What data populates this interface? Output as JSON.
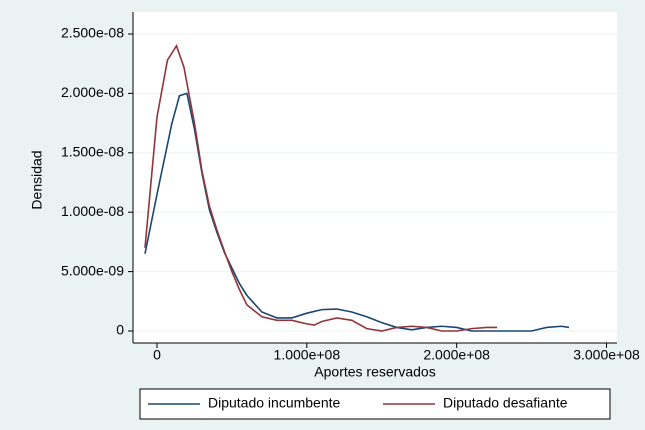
{
  "chart_data": {
    "type": "line",
    "x_label": "Aportes reservados",
    "y_label": "Densidad",
    "xlim": [
      -16000000,
      307000000
    ],
    "ylim": [
      -1.01e-09,
      2.685e-08
    ],
    "xticks": [
      0,
      {
        "value": 100000000,
        "label": "1.000e+08"
      },
      {
        "value": 200000000,
        "label": "2.000e+08"
      },
      {
        "value": 300000000,
        "label": "3.000e+08"
      }
    ],
    "yticks": [
      0,
      {
        "value": 5e-09,
        "label": "5.000e-09"
      },
      {
        "value": 1e-08,
        "label": "1.000e-08"
      },
      {
        "value": 1.5e-08,
        "label": "1.500e-08"
      },
      {
        "value": 2e-08,
        "label": "2.000e-08"
      },
      {
        "value": 2.5e-08,
        "label": "2.500e-08"
      }
    ],
    "grid": true,
    "legend": "bottom",
    "series": [
      {
        "name": "Diputado incumbente",
        "color": "#1a476f",
        "x": [
          -8000000,
          0,
          10000000,
          15000000,
          20000000,
          25000000,
          30000000,
          35000000,
          40000000,
          45000000,
          50000000,
          55000000,
          60000000,
          70000000,
          80000000,
          90000000,
          100000000,
          110000000,
          120000000,
          130000000,
          140000000,
          150000000,
          160000000,
          170000000,
          180000000,
          190000000,
          200000000,
          210000000,
          230000000,
          250000000,
          260000000,
          270000000,
          275000000
        ],
        "values": [
          6.5e-09,
          1.15e-08,
          1.75e-08,
          1.98e-08,
          2e-08,
          1.7e-08,
          1.33e-08,
          1.02e-08,
          8.3e-09,
          6.6e-09,
          5.3e-09,
          4e-09,
          3e-09,
          1.6e-09,
          1.1e-09,
          1.1e-09,
          1.5e-09,
          1.8e-09,
          1.85e-09,
          1.6e-09,
          1.2e-09,
          7e-10,
          3e-10,
          1e-10,
          3e-10,
          4e-10,
          3e-10,
          0,
          0,
          0,
          3e-10,
          4e-10,
          3e-10
        ]
      },
      {
        "name": "Diputado desafiante",
        "color": "#90353b",
        "x": [
          -8000000,
          0,
          7000000,
          13000000,
          18000000,
          25000000,
          30000000,
          35000000,
          40000000,
          45000000,
          50000000,
          55000000,
          60000000,
          70000000,
          80000000,
          90000000,
          100000000,
          105000000,
          110000000,
          120000000,
          130000000,
          140000000,
          150000000,
          160000000,
          170000000,
          180000000,
          190000000,
          200000000,
          210000000,
          220000000,
          227000000
        ],
        "values": [
          7e-09,
          1.8e-08,
          2.28e-08,
          2.4e-08,
          2.22e-08,
          1.75e-08,
          1.35e-08,
          1.05e-08,
          8.5e-09,
          6.7e-09,
          5e-09,
          3.5e-09,
          2.2e-09,
          1.2e-09,
          9e-10,
          9e-10,
          6e-10,
          5e-10,
          8e-10,
          1.1e-09,
          9e-10,
          2e-10,
          0,
          3e-10,
          4e-10,
          3e-10,
          0,
          0,
          2e-10,
          3e-10,
          3e-10
        ]
      }
    ]
  }
}
